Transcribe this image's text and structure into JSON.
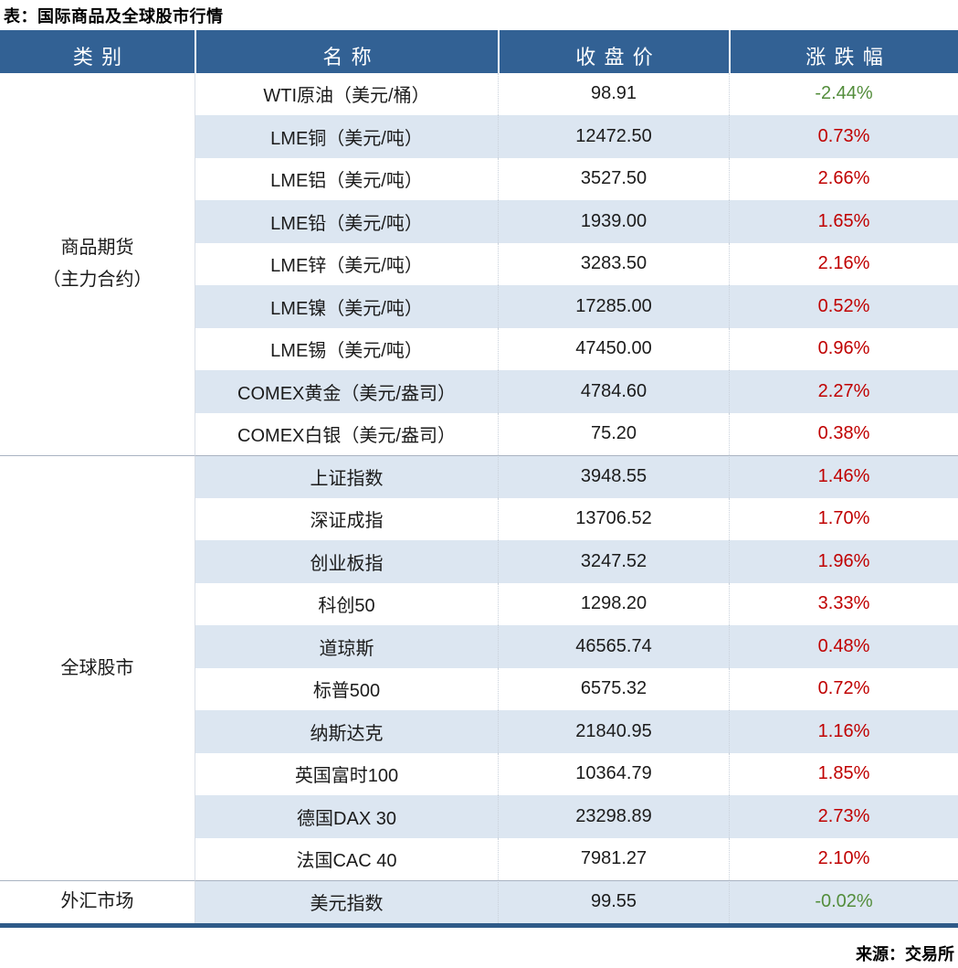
{
  "title": "表：国际商品及全球股市行情",
  "source": "来源：交易所",
  "columns": [
    "类别",
    "名称",
    "收盘价",
    "涨跌幅"
  ],
  "colors": {
    "header_bg": "#326194",
    "band_row": "#DCE6F1",
    "up_red": "#C00000",
    "down_green": "#538D3B",
    "bottom_border": "#2E5A88"
  },
  "chart_data": {
    "type": "table",
    "title": "表：国际商品及全球股市行情",
    "columns": [
      "类别",
      "名称",
      "收盘价",
      "涨跌幅"
    ],
    "source": "来源：交易所",
    "sections": [
      {
        "category_lines": [
          "商品期货",
          "（主力合约）"
        ],
        "rows": [
          {
            "name": "WTI原油（美元/桶）",
            "close": "98.91",
            "change": "-2.44%"
          },
          {
            "name": "LME铜（美元/吨）",
            "close": "12472.50",
            "change": "0.73%"
          },
          {
            "name": "LME铝（美元/吨）",
            "close": "3527.50",
            "change": "2.66%"
          },
          {
            "name": "LME铅（美元/吨）",
            "close": "1939.00",
            "change": "1.65%"
          },
          {
            "name": "LME锌（美元/吨）",
            "close": "3283.50",
            "change": "2.16%"
          },
          {
            "name": "LME镍（美元/吨）",
            "close": "17285.00",
            "change": "0.52%"
          },
          {
            "name": "LME锡（美元/吨）",
            "close": "47450.00",
            "change": "0.96%"
          },
          {
            "name": "COMEX黄金（美元/盎司）",
            "close": "4784.60",
            "change": "2.27%"
          },
          {
            "name": "COMEX白银（美元/盎司）",
            "close": "75.20",
            "change": "0.38%"
          }
        ]
      },
      {
        "category_lines": [
          "全球股市"
        ],
        "rows": [
          {
            "name": "上证指数",
            "close": "3948.55",
            "change": "1.46%"
          },
          {
            "name": "深证成指",
            "close": "13706.52",
            "change": "1.70%"
          },
          {
            "name": "创业板指",
            "close": "3247.52",
            "change": "1.96%"
          },
          {
            "name": "科创50",
            "close": "1298.20",
            "change": "3.33%"
          },
          {
            "name": "道琼斯",
            "close": "46565.74",
            "change": "0.48%"
          },
          {
            "name": "标普500",
            "close": "6575.32",
            "change": "0.72%"
          },
          {
            "name": "纳斯达克",
            "close": "21840.95",
            "change": "1.16%"
          },
          {
            "name": "英国富时100",
            "close": "10364.79",
            "change": "1.85%"
          },
          {
            "name": "德国DAX 30",
            "close": "23298.89",
            "change": "2.73%"
          },
          {
            "name": "法国CAC 40",
            "close": "7981.27",
            "change": "2.10%"
          }
        ]
      },
      {
        "category_lines": [
          "外汇市场"
        ],
        "rows": [
          {
            "name": "美元指数",
            "close": "99.55",
            "change": "-0.02%"
          }
        ]
      }
    ]
  }
}
